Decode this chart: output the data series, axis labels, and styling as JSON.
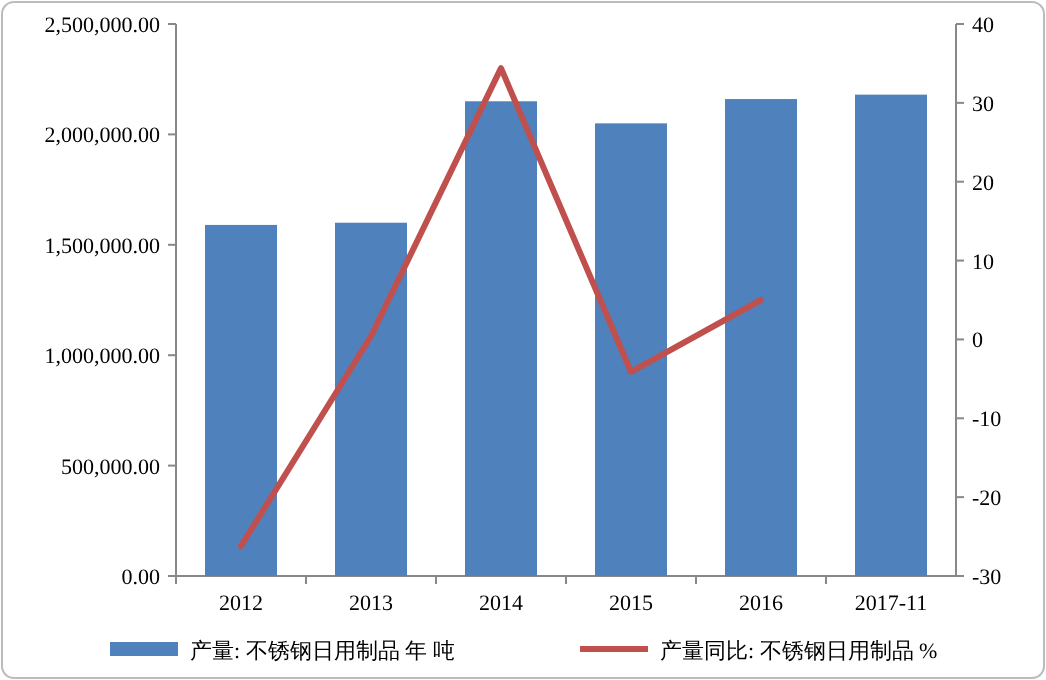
{
  "chart_data": {
    "type": "bar",
    "categories": [
      "2012",
      "2013",
      "2014",
      "2015",
      "2016",
      "2017-11"
    ],
    "series": [
      {
        "name": "产量: 不锈钢日用制品 年 吨",
        "color": "#4f81bd",
        "values": [
          1590000,
          1600000,
          2150000,
          2050000,
          2160000,
          2180000
        ]
      },
      {
        "name": "产量同比: 不锈钢日用制品 %",
        "type": "line",
        "axis": "y2",
        "color": "#c0504d",
        "values": [
          -26.2,
          0.4,
          34.4,
          -4.1,
          5.0,
          null
        ]
      }
    ],
    "ylim": [
      0,
      2500000
    ],
    "yticks": [
      {
        "value": 0,
        "label": "0.00"
      },
      {
        "value": 500000,
        "label": "500,000.00"
      },
      {
        "value": 1000000,
        "label": "1,000,000.00"
      },
      {
        "value": 1500000,
        "label": "1,500,000.00"
      },
      {
        "value": 2000000,
        "label": "2,000,000.00"
      },
      {
        "value": 2500000,
        "label": "2,500,000.00"
      }
    ],
    "y2lim": [
      -30,
      40
    ],
    "y2ticks": [
      -30,
      -20,
      -10,
      0,
      10,
      20,
      30,
      40
    ],
    "legend": "bottom"
  }
}
